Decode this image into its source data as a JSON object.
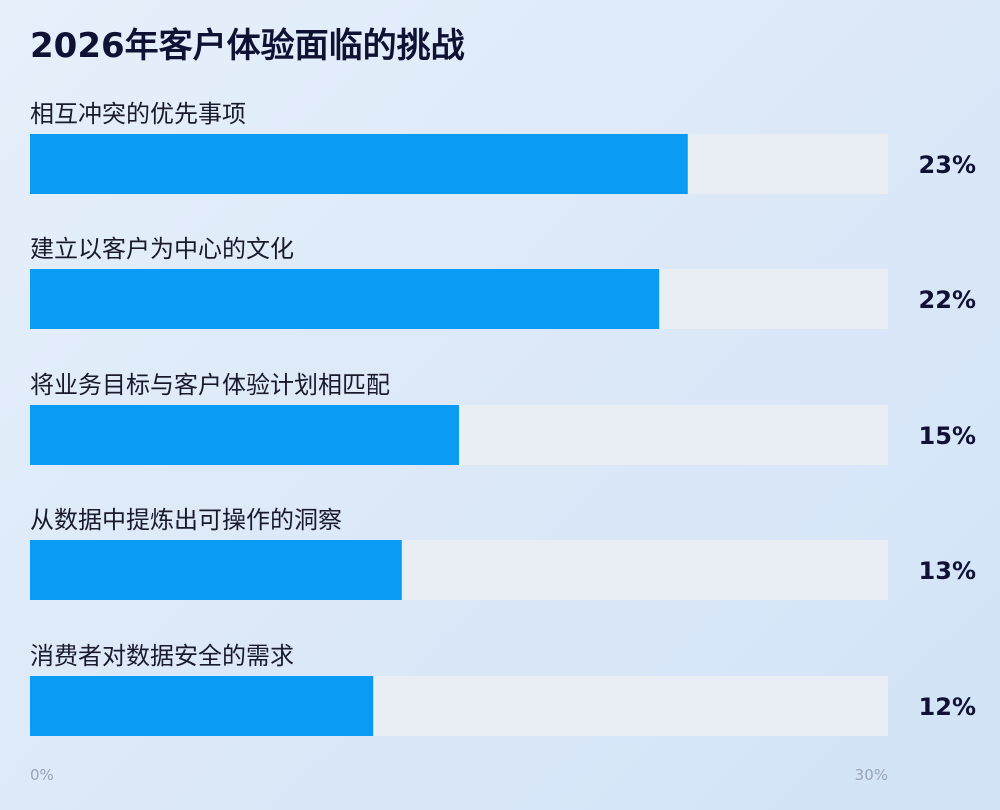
{
  "chart_data": {
    "type": "bar",
    "orientation": "horizontal",
    "title": "2026年客户体验面临的挑战",
    "categories": [
      "相互冲突的优先事项",
      "建立以客户为中心的文化",
      "将业务目标与客户体验计划相匹配",
      "从数据中提炼出可操作的洞察",
      "消费者对数据安全的需求"
    ],
    "values": [
      23,
      22,
      15,
      13,
      12
    ],
    "value_labels": [
      "23%",
      "22%",
      "15%",
      "13%",
      "12%"
    ],
    "xlim": [
      0,
      30
    ],
    "tick_labels": [
      "0%",
      "30%"
    ],
    "grid": false,
    "colors": {
      "bar": "#0a9cf5",
      "track": "#e9edf4",
      "title": "#0f1233"
    }
  }
}
